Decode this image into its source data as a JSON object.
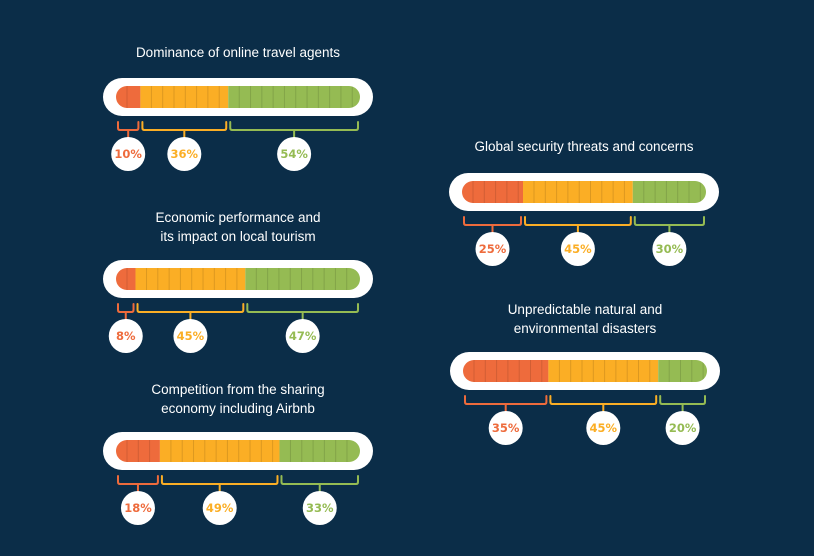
{
  "colors": {
    "background": "#0b2d48",
    "low": "#ee6b3c",
    "mid": "#fbae25",
    "high": "#95bb53",
    "bubble": "#ffffff"
  },
  "chart_data": [
    {
      "type": "bar",
      "title": "Dominance of online travel agents",
      "values": [
        10,
        36,
        54
      ],
      "labels": [
        "10%",
        "36%",
        "54%"
      ]
    },
    {
      "type": "bar",
      "title": "Economic performance and\nits impact on local tourism",
      "values": [
        8,
        45,
        47
      ],
      "labels": [
        "8%",
        "45%",
        "47%"
      ]
    },
    {
      "type": "bar",
      "title": "Competition from the sharing\neconomy including Airbnb",
      "values": [
        18,
        49,
        33
      ],
      "labels": [
        "18%",
        "49%",
        "33%"
      ]
    },
    {
      "type": "bar",
      "title": "Global security threats and concerns",
      "values": [
        25,
        45,
        30
      ],
      "labels": [
        "25%",
        "45%",
        "30%"
      ]
    },
    {
      "type": "bar",
      "title": "Unpredictable natural and\nenvironmental disasters",
      "values": [
        35,
        45,
        20
      ],
      "labels": [
        "35%",
        "45%",
        "20%"
      ]
    }
  ]
}
